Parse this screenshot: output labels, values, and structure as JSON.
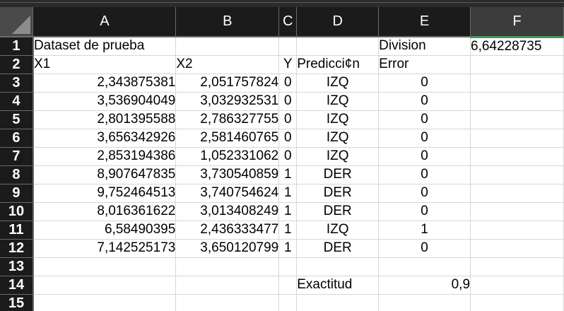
{
  "columns": [
    "A",
    "B",
    "C",
    "D",
    "E",
    "F"
  ],
  "selected_column": "F",
  "rows": [
    {
      "n": "1",
      "cells": [
        "Dataset de prueba",
        "",
        "",
        "",
        "Division",
        "6,64228735"
      ]
    },
    {
      "n": "2",
      "cells": [
        "X1",
        "X2",
        "Y",
        "Predicci¢n",
        "Error",
        ""
      ]
    },
    {
      "n": "3",
      "cells": [
        "2,343875381",
        "2,051757824",
        "0",
        "IZQ",
        "0",
        ""
      ]
    },
    {
      "n": "4",
      "cells": [
        "3,536904049",
        "3,032932531",
        "0",
        "IZQ",
        "0",
        ""
      ]
    },
    {
      "n": "5",
      "cells": [
        "2,801395588",
        "2,786327755",
        "0",
        "IZQ",
        "0",
        ""
      ]
    },
    {
      "n": "6",
      "cells": [
        "3,656342926",
        "2,581460765",
        "0",
        "IZQ",
        "0",
        ""
      ]
    },
    {
      "n": "7",
      "cells": [
        "2,853194386",
        "1,052331062",
        "0",
        "IZQ",
        "0",
        ""
      ]
    },
    {
      "n": "8",
      "cells": [
        "8,907647835",
        "3,730540859",
        "1",
        "DER",
        "0",
        ""
      ]
    },
    {
      "n": "9",
      "cells": [
        "9,752464513",
        "3,740754624",
        "1",
        "DER",
        "0",
        ""
      ]
    },
    {
      "n": "10",
      "cells": [
        "8,016361622",
        "3,013408249",
        "1",
        "DER",
        "0",
        ""
      ]
    },
    {
      "n": "11",
      "cells": [
        "6,58490395",
        "2,436333477",
        "1",
        "IZQ",
        "1",
        ""
      ]
    },
    {
      "n": "12",
      "cells": [
        "7,142525173",
        "3,650120799",
        "1",
        "DER",
        "0",
        ""
      ]
    },
    {
      "n": "13",
      "cells": [
        "",
        "",
        "",
        "",
        "",
        ""
      ]
    },
    {
      "n": "14",
      "cells": [
        "",
        "",
        "",
        "Exactitud",
        "0,9",
        ""
      ]
    },
    {
      "n": "15",
      "cells": [
        "",
        "",
        "",
        "",
        "",
        ""
      ]
    }
  ]
}
